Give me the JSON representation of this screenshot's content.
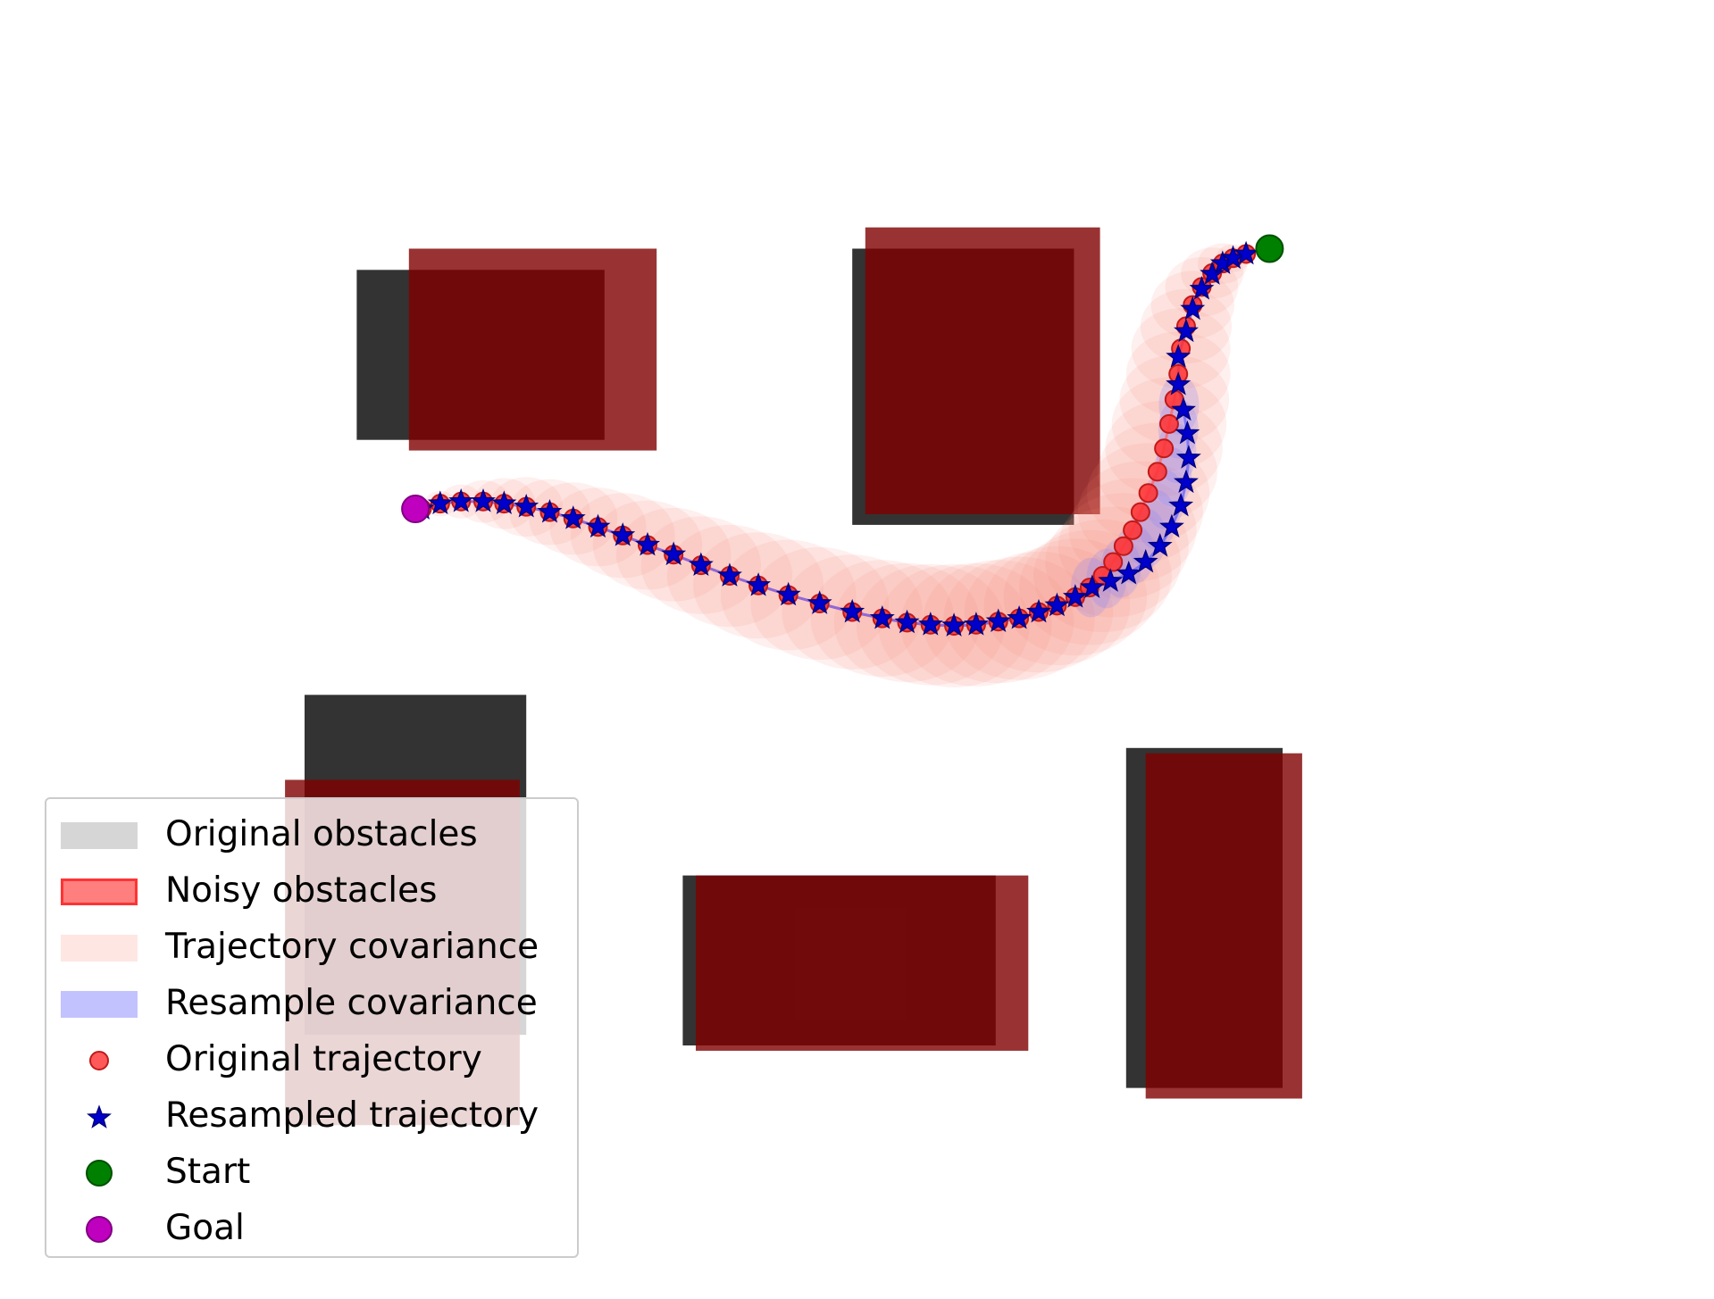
{
  "chart_data": {
    "type": "scatter",
    "title": "",
    "xlabel": "",
    "ylabel": "",
    "axes_visible": false,
    "xlim": [
      0,
      10
    ],
    "ylim": [
      0,
      10
    ],
    "grid": false,
    "legend_position": "lower-left",
    "colors": {
      "original_obstacle": "#333333",
      "noisy_obstacle": "#800000",
      "trajectory_cov": "#fa8072",
      "resample_cov": "#8080ff",
      "original_traj": "#ff3030",
      "resampled_traj": "#0000cc",
      "start": "#008000",
      "goal": "#bf00bf"
    },
    "original_obstacles": [
      {
        "x": 1.4,
        "y": 6.7,
        "w": 1.9,
        "h": 1.6
      },
      {
        "x": 5.2,
        "y": 5.9,
        "w": 1.7,
        "h": 2.6
      },
      {
        "x": 1.0,
        "y": 1.1,
        "w": 1.7,
        "h": 3.2
      },
      {
        "x": 3.9,
        "y": 1.0,
        "w": 2.4,
        "h": 1.6
      },
      {
        "x": 7.3,
        "y": 0.6,
        "w": 1.2,
        "h": 3.2
      }
    ],
    "noisy_obstacles": [
      {
        "x": 1.8,
        "y": 6.6,
        "w": 1.9,
        "h": 1.9
      },
      {
        "x": 5.3,
        "y": 6.0,
        "w": 1.8,
        "h": 2.7
      },
      {
        "x": 0.85,
        "y": 0.25,
        "w": 1.8,
        "h": 3.25
      },
      {
        "x": 4.0,
        "y": 0.95,
        "w": 2.55,
        "h": 1.65
      },
      {
        "x": 7.45,
        "y": 0.5,
        "w": 1.2,
        "h": 3.25
      }
    ],
    "original_trajectory": [
      [
        1.9,
        6.05
      ],
      [
        2.04,
        6.1
      ],
      [
        2.2,
        6.12
      ],
      [
        2.37,
        6.12
      ],
      [
        2.53,
        6.1
      ],
      [
        2.7,
        6.07
      ],
      [
        2.88,
        6.02
      ],
      [
        3.06,
        5.96
      ],
      [
        3.25,
        5.88
      ],
      [
        3.44,
        5.8
      ],
      [
        3.63,
        5.71
      ],
      [
        3.83,
        5.62
      ],
      [
        4.04,
        5.52
      ],
      [
        4.26,
        5.42
      ],
      [
        4.48,
        5.33
      ],
      [
        4.71,
        5.24
      ],
      [
        4.95,
        5.16
      ],
      [
        5.2,
        5.08
      ],
      [
        5.43,
        5.02
      ],
      [
        5.62,
        4.98
      ],
      [
        5.8,
        4.96
      ],
      [
        5.98,
        4.95
      ],
      [
        6.15,
        4.96
      ],
      [
        6.32,
        4.99
      ],
      [
        6.48,
        5.02
      ],
      [
        6.63,
        5.08
      ],
      [
        6.77,
        5.14
      ],
      [
        6.91,
        5.22
      ],
      [
        7.02,
        5.31
      ],
      [
        7.12,
        5.42
      ],
      [
        7.2,
        5.55
      ],
      [
        7.28,
        5.7
      ],
      [
        7.35,
        5.85
      ],
      [
        7.41,
        6.02
      ],
      [
        7.47,
        6.2
      ],
      [
        7.54,
        6.4
      ],
      [
        7.59,
        6.62
      ],
      [
        7.63,
        6.85
      ],
      [
        7.67,
        7.08
      ],
      [
        7.7,
        7.32
      ],
      [
        7.72,
        7.56
      ],
      [
        7.76,
        7.77
      ],
      [
        7.81,
        7.97
      ],
      [
        7.88,
        8.14
      ],
      [
        7.96,
        8.27
      ],
      [
        8.04,
        8.36
      ],
      [
        8.12,
        8.41
      ],
      [
        8.22,
        8.45
      ]
    ],
    "resampled_trajectory": [
      [
        1.9,
        6.05
      ],
      [
        2.04,
        6.1
      ],
      [
        2.2,
        6.12
      ],
      [
        2.37,
        6.12
      ],
      [
        2.53,
        6.1
      ],
      [
        2.7,
        6.07
      ],
      [
        2.88,
        6.02
      ],
      [
        3.06,
        5.96
      ],
      [
        3.25,
        5.88
      ],
      [
        3.44,
        5.8
      ],
      [
        3.63,
        5.71
      ],
      [
        3.83,
        5.62
      ],
      [
        4.04,
        5.52
      ],
      [
        4.26,
        5.42
      ],
      [
        4.48,
        5.33
      ],
      [
        4.71,
        5.24
      ],
      [
        4.95,
        5.16
      ],
      [
        5.2,
        5.08
      ],
      [
        5.43,
        5.02
      ],
      [
        5.62,
        4.98
      ],
      [
        5.8,
        4.96
      ],
      [
        5.98,
        4.95
      ],
      [
        6.15,
        4.96
      ],
      [
        6.32,
        4.99
      ],
      [
        6.48,
        5.02
      ],
      [
        6.63,
        5.08
      ],
      [
        6.77,
        5.14
      ],
      [
        6.91,
        5.22
      ],
      [
        7.04,
        5.31
      ],
      [
        7.18,
        5.37
      ],
      [
        7.32,
        5.44
      ],
      [
        7.45,
        5.55
      ],
      [
        7.56,
        5.7
      ],
      [
        7.65,
        5.88
      ],
      [
        7.72,
        6.08
      ],
      [
        7.76,
        6.3
      ],
      [
        7.78,
        6.53
      ],
      [
        7.77,
        6.76
      ],
      [
        7.74,
        6.98
      ],
      [
        7.7,
        7.22
      ],
      [
        7.7,
        7.48
      ],
      [
        7.76,
        7.72
      ],
      [
        7.81,
        7.93
      ],
      [
        7.88,
        8.12
      ],
      [
        7.96,
        8.26
      ],
      [
        8.04,
        8.36
      ],
      [
        8.12,
        8.41
      ],
      [
        8.22,
        8.45
      ]
    ],
    "trajectory_covariance_radius": [
      0.08,
      0.12,
      0.16,
      0.2,
      0.24,
      0.28,
      0.31,
      0.34,
      0.37,
      0.4,
      0.42,
      0.44,
      0.46,
      0.48,
      0.5,
      0.52,
      0.53,
      0.54,
      0.55,
      0.56,
      0.57,
      0.58,
      0.58,
      0.58,
      0.58,
      0.57,
      0.56,
      0.55,
      0.54,
      0.53,
      0.52,
      0.5,
      0.49,
      0.48,
      0.47,
      0.46,
      0.45,
      0.44,
      0.42,
      0.4,
      0.38,
      0.35,
      0.32,
      0.28,
      0.24,
      0.19,
      0.13,
      0.07
    ],
    "resample_covariance_range": [
      28,
      38
    ],
    "resample_covariance_radius": 0.28,
    "start": [
      8.4,
      8.5
    ],
    "goal": [
      1.85,
      6.05
    ],
    "legend": [
      {
        "key": "orig_obs",
        "label": "Original obstacles"
      },
      {
        "key": "noisy_obs",
        "label": "Noisy obstacles"
      },
      {
        "key": "traj_cov",
        "label": "Trajectory covariance"
      },
      {
        "key": "resample_cov",
        "label": "Resample covariance"
      },
      {
        "key": "orig_traj",
        "label": "Original trajectory"
      },
      {
        "key": "resampled_traj",
        "label": "Resampled trajectory"
      },
      {
        "key": "start",
        "label": "Start"
      },
      {
        "key": "goal",
        "label": "Goal"
      }
    ]
  }
}
